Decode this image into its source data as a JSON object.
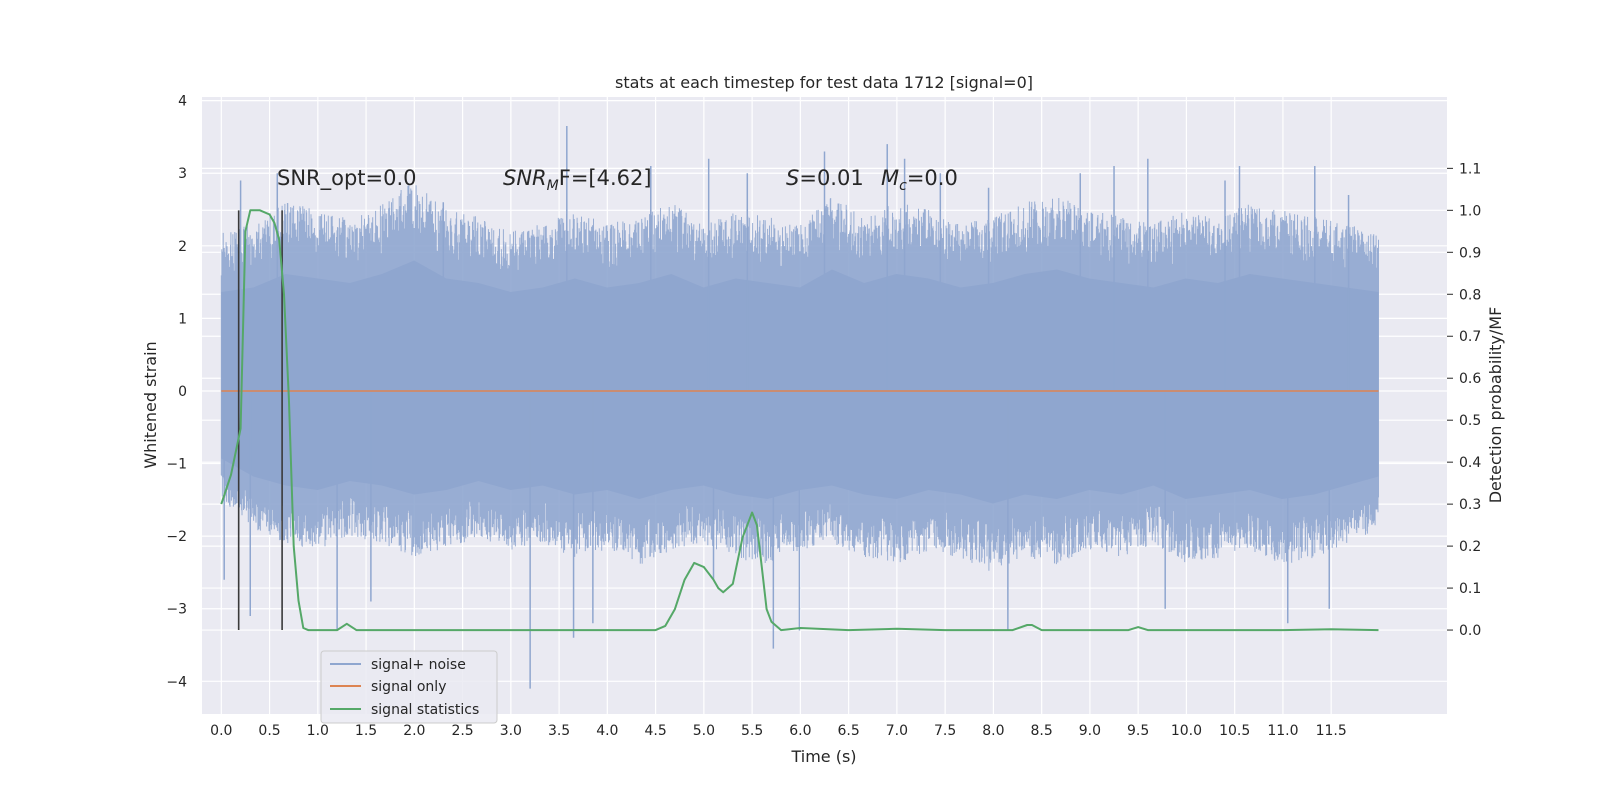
{
  "chart_data": {
    "type": "line",
    "title": "stats at each timestep for test data 1712 [signal=0]",
    "xlabel": "Time (s)",
    "ylabel": "Whitened strain",
    "y2label": "Detection probability/MF",
    "xlim": [
      -0.2,
      12.7
    ],
    "ylim": [
      -4.45,
      4.05
    ],
    "y2lim": [
      -0.2,
      1.27
    ],
    "x_ticks": [
      "0.0",
      "0.5",
      "1.0",
      "1.5",
      "2.0",
      "2.5",
      "3.0",
      "3.5",
      "4.0",
      "4.5",
      "5.0",
      "5.5",
      "6.0",
      "6.5",
      "7.0",
      "7.5",
      "8.0",
      "8.5",
      "9.0",
      "9.5",
      "10.0",
      "10.5",
      "11.0",
      "11.5"
    ],
    "y_ticks": [
      "4",
      "3",
      "2",
      "1",
      "0",
      "−1",
      "−2",
      "−3",
      "−4"
    ],
    "y2_ticks": [
      "1.1",
      "1.0",
      "0.9",
      "0.8",
      "0.7",
      "0.6",
      "0.5",
      "0.4",
      "0.3",
      "0.2",
      "0.1",
      "0.0"
    ],
    "grid": true,
    "legend_position": "lower-left",
    "annotations": [
      {
        "name": "snr-opt",
        "text": "SNR_opt=0.0",
        "x": 0.2,
        "y2": 1.0
      },
      {
        "name": "snr-mf",
        "text": "SNR",
        "sub": "M",
        "after": "F=[4.62]",
        "x": 2.6,
        "y2": 1.0
      },
      {
        "name": "s-stat",
        "text": "S",
        "after": "=0.01",
        "x": 5.6,
        "y2": 1.0
      },
      {
        "name": "mc",
        "text": "M",
        "sub": "c",
        "after": "=0.0",
        "x": 6.6,
        "y2": 1.0
      }
    ],
    "vertical_lines": [
      0.18,
      0.63
    ],
    "series": [
      {
        "name": "signal+ noise",
        "color": "#8fa6cf",
        "axis": "left",
        "x_range": [
          0.0,
          11.99
        ],
        "envelope_pos": [
          2.2,
          2.3,
          2.6,
          2.5,
          2.4,
          2.6,
          2.9,
          2.5,
          2.4,
          2.2,
          2.3,
          2.5,
          2.3,
          2.4,
          2.6,
          2.3,
          2.5,
          2.4,
          2.3,
          2.7,
          2.4,
          2.6,
          2.5,
          2.3,
          2.4,
          2.6,
          2.7,
          2.5,
          2.4,
          2.3,
          2.5,
          2.4,
          2.6,
          2.5,
          2.4,
          2.3,
          2.2
        ],
        "envelope_neg": [
          -1.5,
          -1.9,
          -2.1,
          -2.2,
          -2.0,
          -2.1,
          -2.3,
          -2.2,
          -2.0,
          -2.2,
          -2.1,
          -2.3,
          -2.2,
          -2.4,
          -2.2,
          -2.1,
          -2.3,
          -2.4,
          -2.2,
          -2.1,
          -2.3,
          -2.4,
          -2.2,
          -2.3,
          -2.5,
          -2.3,
          -2.4,
          -2.2,
          -2.3,
          -2.1,
          -2.4,
          -2.3,
          -2.2,
          -2.4,
          -2.3,
          -2.1,
          -1.9
        ],
        "spikes": [
          {
            "x": 0.03,
            "y": -2.6
          },
          {
            "x": 0.2,
            "y": 2.9
          },
          {
            "x": 0.3,
            "y": -3.1
          },
          {
            "x": 0.58,
            "y": 3.0
          },
          {
            "x": 1.2,
            "y": -3.3
          },
          {
            "x": 1.55,
            "y": -2.9
          },
          {
            "x": 2.3,
            "y": 2.6
          },
          {
            "x": 3.2,
            "y": -4.1
          },
          {
            "x": 3.58,
            "y": 3.65
          },
          {
            "x": 3.65,
            "y": -3.4
          },
          {
            "x": 3.85,
            "y": -3.2
          },
          {
            "x": 4.45,
            "y": 3.1
          },
          {
            "x": 5.05,
            "y": 3.2
          },
          {
            "x": 5.1,
            "y": -2.6
          },
          {
            "x": 5.45,
            "y": 3.0
          },
          {
            "x": 5.72,
            "y": -3.55
          },
          {
            "x": 5.99,
            "y": -3.3
          },
          {
            "x": 6.25,
            "y": 3.3
          },
          {
            "x": 6.9,
            "y": 3.4
          },
          {
            "x": 7.08,
            "y": 3.2
          },
          {
            "x": 7.45,
            "y": 3.0
          },
          {
            "x": 7.95,
            "y": 2.8
          },
          {
            "x": 8.15,
            "y": -3.3
          },
          {
            "x": 8.9,
            "y": 3.0
          },
          {
            "x": 9.25,
            "y": 3.1
          },
          {
            "x": 9.6,
            "y": 3.2
          },
          {
            "x": 9.78,
            "y": -3.0
          },
          {
            "x": 10.4,
            "y": 2.9
          },
          {
            "x": 10.55,
            "y": 3.1
          },
          {
            "x": 11.05,
            "y": -3.2
          },
          {
            "x": 11.33,
            "y": 3.1
          },
          {
            "x": 11.48,
            "y": -3.0
          },
          {
            "x": 11.68,
            "y": 2.7
          }
        ]
      },
      {
        "name": "signal only",
        "color": "#dd8452",
        "axis": "left",
        "x": [
          0.0,
          11.99
        ],
        "y": [
          0.0,
          0.0
        ]
      },
      {
        "name": "signal statistics",
        "color": "#55a868",
        "axis": "right",
        "x": [
          0.0,
          0.1,
          0.2,
          0.25,
          0.3,
          0.4,
          0.5,
          0.55,
          0.6,
          0.65,
          0.7,
          0.75,
          0.8,
          0.85,
          0.9,
          1.0,
          1.1,
          1.2,
          1.3,
          1.4,
          1.5,
          2.0,
          3.0,
          4.0,
          4.5,
          4.6,
          4.7,
          4.8,
          4.9,
          5.0,
          5.1,
          5.15,
          5.2,
          5.3,
          5.4,
          5.5,
          5.55,
          5.6,
          5.65,
          5.7,
          5.8,
          6.0,
          6.5,
          7.0,
          7.5,
          8.0,
          8.2,
          8.35,
          8.4,
          8.5,
          9.0,
          9.4,
          9.5,
          9.6,
          10.0,
          11.0,
          11.5,
          11.99
        ],
        "y": [
          0.3,
          0.37,
          0.48,
          0.95,
          1.0,
          1.0,
          0.99,
          0.97,
          0.93,
          0.8,
          0.55,
          0.2,
          0.07,
          0.005,
          0.0,
          0.0,
          0.0,
          0.0,
          0.015,
          0.0,
          0.0,
          0.0,
          0.0,
          0.0,
          0.0,
          0.01,
          0.05,
          0.12,
          0.16,
          0.15,
          0.12,
          0.1,
          0.09,
          0.11,
          0.22,
          0.28,
          0.25,
          0.15,
          0.05,
          0.02,
          0.0,
          0.005,
          0.0,
          0.003,
          0.0,
          0.0,
          0.0,
          0.012,
          0.012,
          0.0,
          0.0,
          0.0,
          0.007,
          0.0,
          0.0,
          0.0,
          0.002,
          0.0
        ]
      }
    ]
  }
}
